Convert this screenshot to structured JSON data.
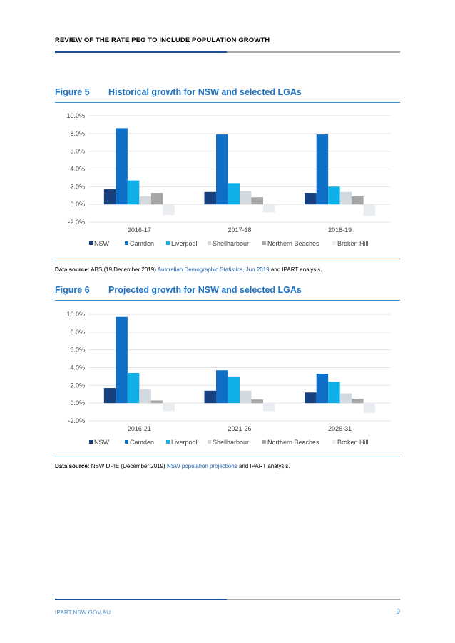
{
  "header": {
    "title": "REVIEW OF THE RATE PEG TO INCLUDE POPULATION GROWTH"
  },
  "colors": {
    "series": [
      "#17407e",
      "#0f6fc6",
      "#0fb0e8",
      "#d3dadf",
      "#a6a6a6",
      "#e9edf1"
    ],
    "accent": "#1f72c1"
  },
  "figures": [
    {
      "number": "Figure 5",
      "title": "Historical growth for NSW and selected LGAs",
      "source": {
        "label": "Data source:",
        "pre": " ABS (19 December 2019) ",
        "link": "Australian Demographic Statistics, Jun 2019",
        "post": " and IPART analysis."
      }
    },
    {
      "number": "Figure 6",
      "title": "Projected growth for NSW and selected LGAs",
      "source": {
        "label": "Data source:",
        "pre": " NSW DPIE (December 2019) ",
        "link": "NSW population projections",
        "post": " and IPART analysis."
      }
    }
  ],
  "chart_data": [
    {
      "type": "bar",
      "title": "Historical growth for NSW and selected LGAs",
      "categories": [
        "2016-17",
        "2017-18",
        "2018-19"
      ],
      "series": [
        {
          "name": "NSW",
          "values": [
            1.7,
            1.4,
            1.3
          ]
        },
        {
          "name": "Camden",
          "values": [
            8.6,
            7.9,
            7.9
          ]
        },
        {
          "name": "Liverpool",
          "values": [
            2.7,
            2.4,
            2.0
          ]
        },
        {
          "name": "Shellharbour",
          "values": [
            0.9,
            1.5,
            1.4
          ]
        },
        {
          "name": "Northern Beaches",
          "values": [
            1.3,
            0.8,
            0.9
          ]
        },
        {
          "name": "Broken Hill",
          "values": [
            -1.2,
            -0.9,
            -1.3
          ]
        }
      ],
      "ylim": [
        -2,
        10
      ],
      "yticks": [
        "-2.0%",
        "0.0%",
        "2.0%",
        "4.0%",
        "6.0%",
        "8.0%",
        "10.0%"
      ],
      "grid": true,
      "legend": "bottom"
    },
    {
      "type": "bar",
      "title": "Projected growth for NSW and selected LGAs",
      "categories": [
        "2016-21",
        "2021-26",
        "2026-31"
      ],
      "series": [
        {
          "name": "NSW",
          "values": [
            1.7,
            1.4,
            1.2
          ]
        },
        {
          "name": "Camden",
          "values": [
            9.7,
            3.7,
            3.3
          ]
        },
        {
          "name": "Liverpool",
          "values": [
            3.4,
            3.0,
            2.4
          ]
        },
        {
          "name": "Shellharbour",
          "values": [
            1.6,
            1.4,
            1.1
          ]
        },
        {
          "name": "Northern Beaches",
          "values": [
            0.3,
            0.4,
            0.5
          ]
        },
        {
          "name": "Broken Hill",
          "values": [
            -0.9,
            -0.9,
            -1.1
          ]
        }
      ],
      "ylim": [
        -2,
        10
      ],
      "yticks": [
        "-2.0%",
        "0.0%",
        "2.0%",
        "4.0%",
        "6.0%",
        "8.0%",
        "10.0%"
      ],
      "grid": true,
      "legend": "bottom"
    }
  ],
  "footer": {
    "website": "IPART.NSW.GOV.AU",
    "page": "9"
  }
}
